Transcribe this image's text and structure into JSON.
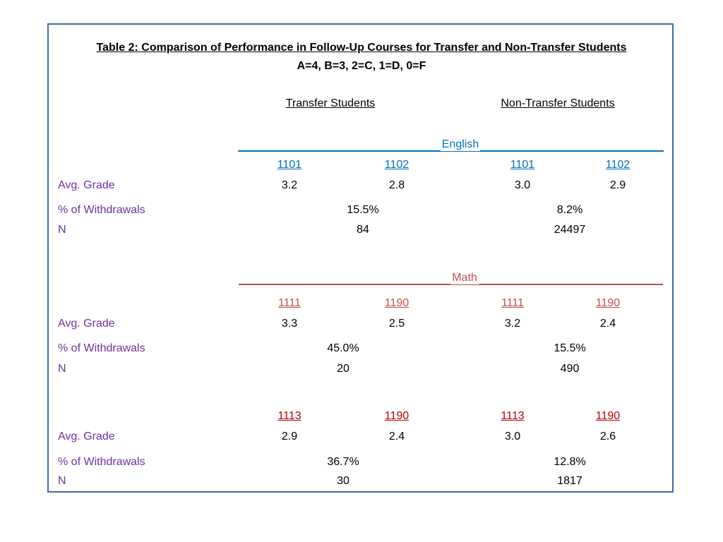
{
  "title": "Table 2: Comparison of Performance in Follow-Up Courses for Transfer and Non-Transfer Students",
  "subtitle": "A=4, B=3, 2=C, 1=D, 0=F",
  "groups": {
    "transfer": "Transfer Students",
    "non_transfer": "Non-Transfer Students"
  },
  "row_labels": {
    "avg_grade": "Avg. Grade",
    "withdrawals": "% of Withdrawals",
    "n": "N"
  },
  "english": {
    "name": "English",
    "courses": [
      "1101",
      "1102",
      "1101",
      "1102"
    ],
    "avg_grades": [
      "3.2",
      "2.8",
      "3.0",
      "2.9"
    ],
    "withdrawals": [
      "15.5%",
      "8.2%"
    ],
    "n": [
      "84",
      "24497"
    ]
  },
  "math1": {
    "name": "Math",
    "courses": [
      "1111",
      "1190",
      "1111",
      "1190"
    ],
    "avg_grades": [
      "3.3",
      "2.5",
      "3.2",
      "2.4"
    ],
    "withdrawals": [
      "45.0%",
      "15.5%"
    ],
    "n": [
      "20",
      "490"
    ]
  },
  "math2": {
    "courses": [
      "1113",
      "1190",
      "1113",
      "1190"
    ],
    "avg_grades": [
      "2.9",
      "2.4",
      "3.0",
      "2.6"
    ],
    "withdrawals": [
      "36.7%",
      "12.8%"
    ],
    "n": [
      "30",
      "1817"
    ]
  },
  "colors": {
    "border": "#3f6ea8",
    "label": "#7030a0",
    "english": "#0070c0",
    "math": "#c0504d",
    "math2_course": "#c00000"
  }
}
